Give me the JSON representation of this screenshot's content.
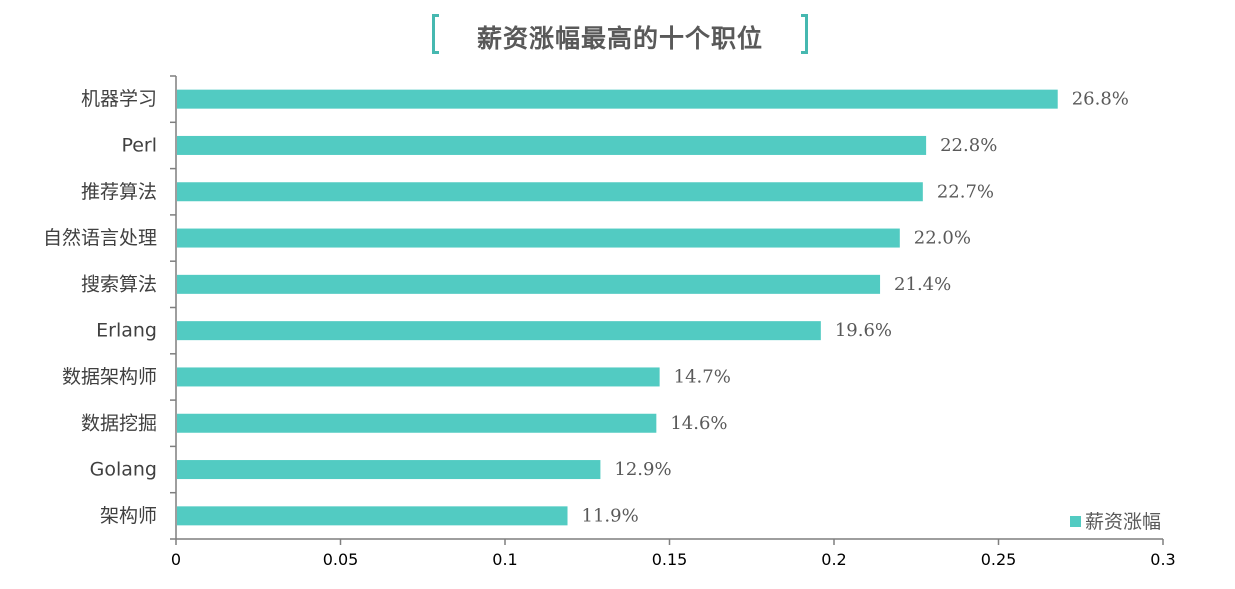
{
  "chart_data": {
    "type": "bar",
    "orientation": "horizontal",
    "title": "薪资涨幅最高的十个职位",
    "categories": [
      "机器学习",
      "Perl",
      "推荐算法",
      "自然语言处理",
      "搜索算法",
      "Erlang",
      "数据架构师",
      "数据挖掘",
      "Golang",
      "架构师"
    ],
    "series": [
      {
        "name": "薪资涨幅",
        "values": [
          0.268,
          0.228,
          0.227,
          0.22,
          0.214,
          0.196,
          0.147,
          0.146,
          0.129,
          0.119
        ],
        "labels": [
          "26.8%",
          "22.8%",
          "22.7%",
          "22.0%",
          "21.4%",
          "19.6%",
          "14.7%",
          "14.6%",
          "12.9%",
          "11.9%"
        ],
        "color": "#52cbc2"
      }
    ],
    "xlim": [
      0,
      0.3
    ],
    "xticks": [
      "0",
      "0.05",
      "0.1",
      "0.15",
      "0.2",
      "0.25",
      "0.3"
    ],
    "grid": false,
    "legend": "bottom-right"
  },
  "colors": {
    "bar": "#52cbc2",
    "title_bracket": "#46b8b0",
    "axis": "#7f7f7f"
  }
}
